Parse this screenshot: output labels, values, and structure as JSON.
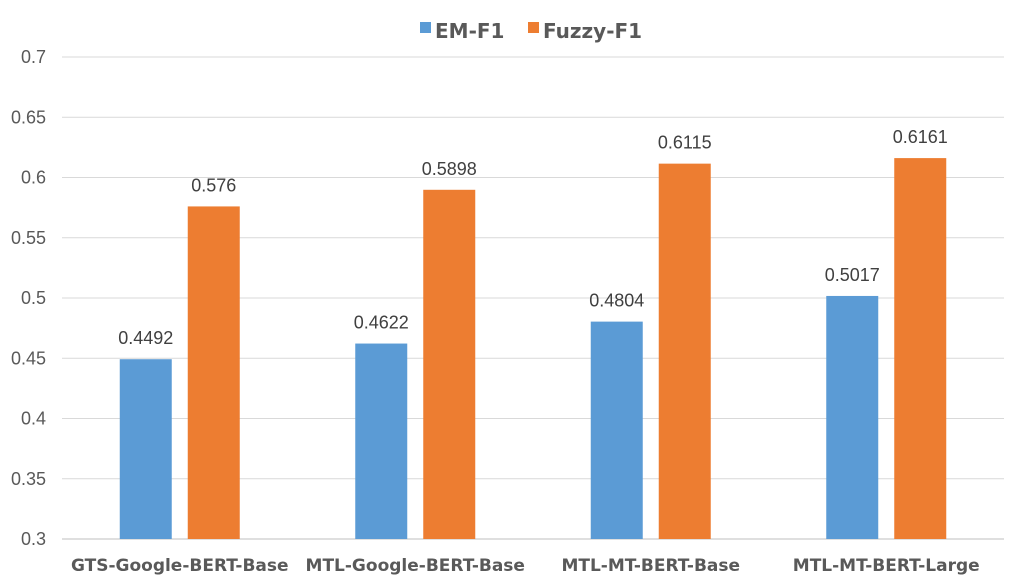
{
  "chart_data": {
    "type": "bar",
    "categories": [
      "GTS-Google-BERT-Base",
      "MTL-Google-BERT-Base",
      "MTL-MT-BERT-Base",
      "MTL-MT-BERT-Large"
    ],
    "series": [
      {
        "name": "EM-F1",
        "values": [
          0.4492,
          0.4622,
          0.4804,
          0.5017
        ],
        "color": "#5b9bd5"
      },
      {
        "name": "Fuzzy-F1",
        "values": [
          0.576,
          0.5898,
          0.6115,
          0.6161
        ],
        "color": "#ed7d31"
      }
    ],
    "y_ticks": [
      "0.3",
      "0.35",
      "0.4",
      "0.45",
      "0.5",
      "0.55",
      "0.6",
      "0.65",
      "0.7"
    ],
    "ylim": [
      0.3,
      0.7
    ],
    "title": "",
    "xlabel": "",
    "ylabel": "",
    "grid": true,
    "legend_position": "top"
  }
}
